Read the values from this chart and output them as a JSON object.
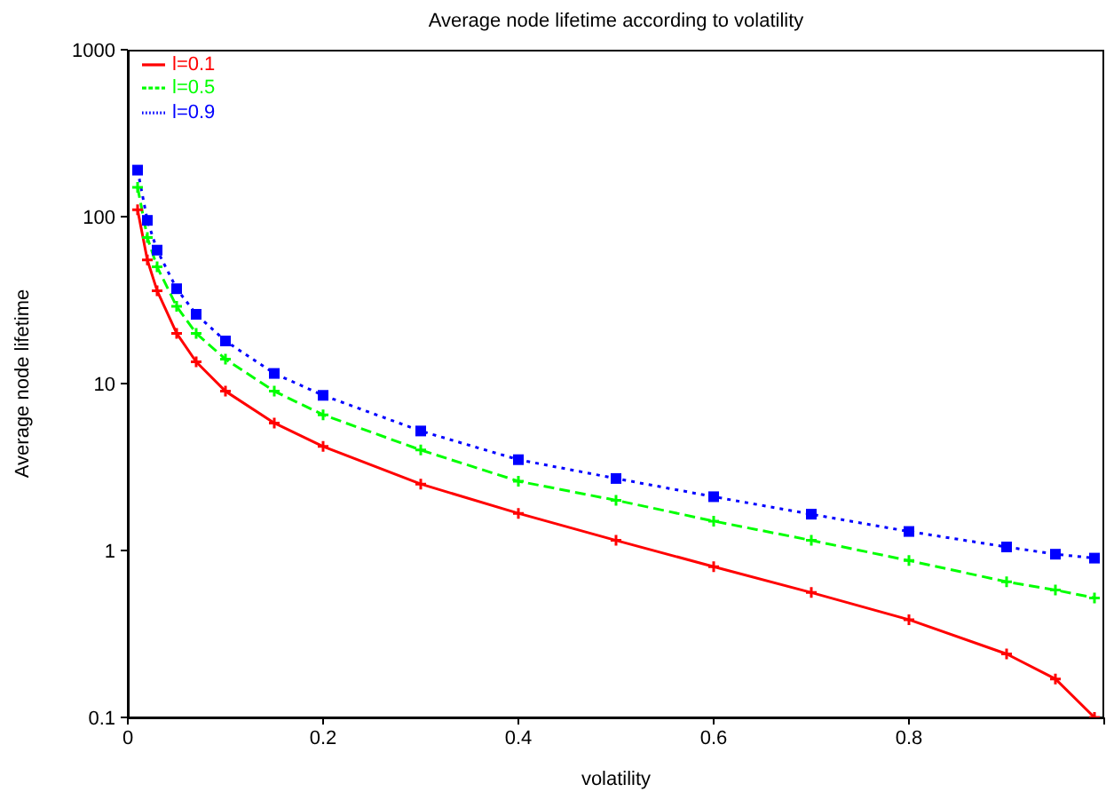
{
  "chart_data": {
    "type": "line",
    "title": "Average node lifetime according to volatility",
    "xlabel": "volatility",
    "ylabel": "Average node lifetime",
    "x": [
      0.01,
      0.02,
      0.03,
      0.05,
      0.07,
      0.1,
      0.15,
      0.2,
      0.3,
      0.4,
      0.5,
      0.6,
      0.7,
      0.8,
      0.9,
      0.95,
      0.99
    ],
    "series": [
      {
        "name": "l=0.1",
        "color": "#ff0000",
        "marker": "cross",
        "line_style": "solid",
        "values": [
          110,
          55,
          36,
          20,
          13.5,
          9,
          5.8,
          4.2,
          2.5,
          1.67,
          1.15,
          0.8,
          0.56,
          0.385,
          0.24,
          0.17,
          0.1
        ]
      },
      {
        "name": "l=0.5",
        "color": "#00ff00",
        "marker": "cross",
        "line_style": "dashed",
        "values": [
          150,
          75,
          50,
          29,
          20,
          14,
          9,
          6.5,
          4,
          2.6,
          2,
          1.5,
          1.15,
          0.87,
          0.65,
          0.58,
          0.52
        ]
      },
      {
        "name": "l=0.9",
        "color": "#0000ff",
        "marker": "square",
        "line_style": "dotted",
        "values": [
          190,
          95,
          63,
          37,
          26,
          18,
          11.5,
          8.5,
          5.2,
          3.5,
          2.7,
          2.1,
          1.65,
          1.3,
          1.05,
          0.95,
          0.9
        ]
      }
    ],
    "xlim": [
      0,
      1
    ],
    "xticks": [
      0,
      0.2,
      0.4,
      0.6,
      0.8,
      {
        "value": 1,
        "label": null
      }
    ],
    "ylim": [
      0.1,
      1000
    ],
    "yticks": [
      0.1,
      1,
      10,
      100,
      1000
    ],
    "log": "y",
    "grid": false,
    "legend": "top left"
  }
}
